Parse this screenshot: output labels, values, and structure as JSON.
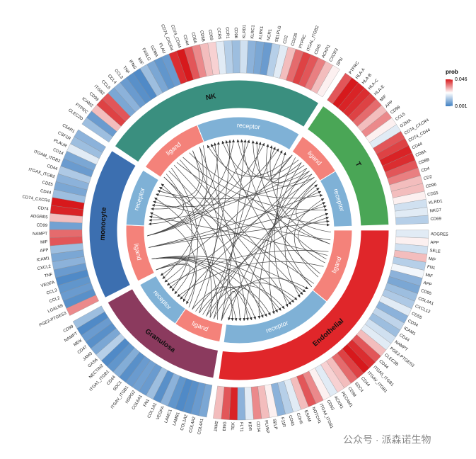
{
  "chart_data": {
    "type": "circos",
    "roles": [
      "ligand",
      "receptor"
    ],
    "legend": {
      "title": "prob",
      "clim": [
        0.001,
        0.046
      ],
      "cticks": [
        0.001,
        0.046
      ],
      "colors": [
        "#3f7fc1",
        "#ffffff",
        "#d7191c"
      ]
    },
    "watermark": "公众号 · 派森诺生物",
    "sectors": [
      {
        "name": "NK",
        "color": "#3a8f7f",
        "groups": [
          [
            {
              "gene": "CLEC2D",
              "prob": 0.012
            },
            {
              "gene": "PTPRC",
              "prob": 0.006
            },
            {
              "gene": "ICAM2",
              "prob": 0.03
            },
            {
              "gene": "CD99",
              "prob": 0.042
            },
            {
              "gene": "ITGB2",
              "prob": 0.04
            },
            {
              "gene": "CCL5",
              "prob": 0.008
            },
            {
              "gene": "CCL4",
              "prob": 0.01
            },
            {
              "gene": "CCL3",
              "prob": 0.006
            },
            {
              "gene": "TNF",
              "prob": 0.004
            },
            {
              "gene": "IFNG",
              "prob": 0.003
            },
            {
              "gene": "MIF",
              "prob": 0.012
            },
            {
              "gene": "FASLG",
              "prob": 0.008
            },
            {
              "gene": "GZMA",
              "prob": 0.005
            },
            {
              "gene": "PLAU",
              "prob": 0.006
            }
          ],
          [
            {
              "gene": "CD74_CXCR4",
              "prob": 0.044
            },
            {
              "gene": "CD74_CD44",
              "prob": 0.046
            },
            {
              "gene": "CD44",
              "prob": 0.04
            },
            {
              "gene": "CD8A",
              "prob": 0.035
            },
            {
              "gene": "CD8B",
              "prob": 0.03
            },
            {
              "gene": "CD69",
              "prob": 0.028
            },
            {
              "gene": "CCR5",
              "prob": 0.02
            },
            {
              "gene": "CCR1",
              "prob": 0.015
            },
            {
              "gene": "CD96",
              "prob": 0.012
            },
            {
              "gene": "KLRD1",
              "prob": 0.018
            },
            {
              "gene": "KLRC1",
              "prob": 0.01
            },
            {
              "gene": "KLRK1",
              "prob": 0.008
            },
            {
              "gene": "NCR1",
              "prob": 0.006
            },
            {
              "gene": "SELPLG",
              "prob": 0.015
            },
            {
              "gene": "CD2",
              "prob": 0.02
            },
            {
              "gene": "CD226",
              "prob": 0.03
            },
            {
              "gene": "PTPRC",
              "prob": 0.038
            },
            {
              "gene": "ITGAL_ITGB2",
              "prob": 0.042
            },
            {
              "gene": "CD45",
              "prob": 0.04
            },
            {
              "gene": "ACKR1",
              "prob": 0.036
            },
            {
              "gene": "CXCR3",
              "prob": 0.03
            },
            {
              "gene": "SPN",
              "prob": 0.025
            }
          ]
        ]
      },
      {
        "name": "T",
        "color": "#4aa656",
        "groups": [
          [
            {
              "gene": "PTPRC",
              "prob": 0.04
            },
            {
              "gene": "HLA-A",
              "prob": 0.046
            },
            {
              "gene": "HLA-B",
              "prob": 0.045
            },
            {
              "gene": "HLA-C",
              "prob": 0.044
            },
            {
              "gene": "HLA-E",
              "prob": 0.042
            },
            {
              "gene": "MIF",
              "prob": 0.038
            },
            {
              "gene": "APP",
              "prob": 0.03
            },
            {
              "gene": "CD99",
              "prob": 0.035
            },
            {
              "gene": "CCL5",
              "prob": 0.025
            },
            {
              "gene": "GZMA",
              "prob": 0.02
            }
          ],
          [
            {
              "gene": "CD74_CXCR4",
              "prob": 0.04
            },
            {
              "gene": "CD74_CD44",
              "prob": 0.042
            },
            {
              "gene": "CD44",
              "prob": 0.045
            },
            {
              "gene": "CD8A",
              "prob": 0.044
            },
            {
              "gene": "CD8B",
              "prob": 0.04
            },
            {
              "gene": "CD4",
              "prob": 0.036
            },
            {
              "gene": "CD2",
              "prob": 0.03
            },
            {
              "gene": "CD96",
              "prob": 0.03
            },
            {
              "gene": "CD55",
              "prob": 0.025
            },
            {
              "gene": "KLRD1",
              "prob": 0.018
            },
            {
              "gene": "NKG7",
              "prob": 0.02
            },
            {
              "gene": "CD69",
              "prob": 0.015
            }
          ]
        ]
      },
      {
        "name": "Endothelial",
        "color": "#e0262a",
        "groups": [
          [
            {
              "gene": "ADGRE5",
              "prob": 0.02
            },
            {
              "gene": "APP",
              "prob": 0.025
            },
            {
              "gene": "SELE",
              "prob": 0.018
            },
            {
              "gene": "MIF",
              "prob": 0.03
            },
            {
              "gene": "FN1",
              "prob": 0.015
            },
            {
              "gene": "MIF",
              "prob": 0.022
            },
            {
              "gene": "APP",
              "prob": 0.01
            },
            {
              "gene": "CD55",
              "prob": 0.008
            },
            {
              "gene": "COL4A1",
              "prob": 0.012
            },
            {
              "gene": "CXCL12",
              "prob": 0.014
            },
            {
              "gene": "CD55",
              "prob": 0.02
            },
            {
              "gene": "CD34",
              "prob": 0.01
            },
            {
              "gene": "ICAM1",
              "prob": 0.016
            },
            {
              "gene": "CD44",
              "prob": 0.012
            },
            {
              "gene": "NAMPT",
              "prob": 0.018
            },
            {
              "gene": "PGE2-PTGES3",
              "prob": 0.02
            }
          ],
          [
            {
              "gene": "CLEC2B",
              "prob": 0.03
            },
            {
              "gene": "CD44",
              "prob": 0.04
            },
            {
              "gene": "ITGA5_ITGB1",
              "prob": 0.044
            },
            {
              "gene": "ITGAV_ITGB1",
              "prob": 0.046
            },
            {
              "gene": "CD44",
              "prob": 0.042
            },
            {
              "gene": "SDC4",
              "prob": 0.038
            },
            {
              "gene": "CD99",
              "prob": 0.03
            },
            {
              "gene": "PECAM1",
              "prob": 0.028
            },
            {
              "gene": "ACKR1",
              "prob": 0.02
            },
            {
              "gene": "CD93",
              "prob": 0.025
            },
            {
              "gene": "ITGA4_ITGB1",
              "prob": 0.035
            },
            {
              "gene": "NOTCH1",
              "prob": 0.04
            },
            {
              "gene": "ESAM",
              "prob": 0.03
            },
            {
              "gene": "CDH5",
              "prob": 0.02
            },
            {
              "gene": "CD46",
              "prob": 0.015
            },
            {
              "gene": "F11R",
              "prob": 0.01
            },
            {
              "gene": "SELP",
              "prob": 0.025
            },
            {
              "gene": "PLVAP",
              "prob": 0.03
            },
            {
              "gene": "CD34",
              "prob": 0.035
            },
            {
              "gene": "KDR",
              "prob": 0.02
            },
            {
              "gene": "FLT1",
              "prob": 0.01
            },
            {
              "gene": "TEK",
              "prob": 0.045
            },
            {
              "gene": "ENG",
              "prob": 0.04
            },
            {
              "gene": "JAM2",
              "prob": 0.03
            }
          ]
        ]
      },
      {
        "name": "Granulosa",
        "color": "#8b3a5e",
        "groups": [
          [
            {
              "gene": "COL4A1",
              "prob": 0.008
            },
            {
              "gene": "COL4A2",
              "prob": 0.006
            },
            {
              "gene": "COL1A2",
              "prob": 0.004
            },
            {
              "gene": "LAMB1",
              "prob": 0.003
            },
            {
              "gene": "LAMC1",
              "prob": 0.005
            },
            {
              "gene": "VEGFA",
              "prob": 0.01
            },
            {
              "gene": "COL1A1",
              "prob": 0.004
            },
            {
              "gene": "FN1",
              "prob": 0.012
            },
            {
              "gene": "COL6A1",
              "prob": 0.006
            },
            {
              "gene": "HSPG2",
              "prob": 0.007
            }
          ],
          [
            {
              "gene": "ITGAV_ITGB1",
              "prob": 0.006
            },
            {
              "gene": "SDC1",
              "prob": 0.004
            },
            {
              "gene": "CD44",
              "prob": 0.009
            },
            {
              "gene": "ITGA1_ITGB1",
              "prob": 0.005
            },
            {
              "gene": "NECTIN2",
              "prob": 0.003
            },
            {
              "gene": "GAS6",
              "prob": 0.015
            },
            {
              "gene": "JAM3",
              "prob": 0.008
            },
            {
              "gene": "CD47",
              "prob": 0.004
            },
            {
              "gene": "MDK",
              "prob": 0.006
            },
            {
              "gene": "NAMPT",
              "prob": 0.003
            },
            {
              "gene": "CD99",
              "prob": 0.012
            }
          ]
        ]
      },
      {
        "name": "monocyte",
        "color": "#3c6fb0",
        "groups": [
          [
            {
              "gene": "PGE2-PTGES3",
              "prob": 0.035
            },
            {
              "gene": "LGALS9",
              "prob": 0.004
            },
            {
              "gene": "CCL2",
              "prob": 0.006
            },
            {
              "gene": "CCL3",
              "prob": 0.005
            },
            {
              "gene": "VEGFA",
              "prob": 0.003
            },
            {
              "gene": "TNF",
              "prob": 0.006
            },
            {
              "gene": "CXCL2",
              "prob": 0.01
            },
            {
              "gene": "ICAM1",
              "prob": 0.008
            },
            {
              "gene": "APP",
              "prob": 0.012
            },
            {
              "gene": "MIF",
              "prob": 0.04
            },
            {
              "gene": "NAMPT",
              "prob": 0.038
            },
            {
              "gene": "CD99",
              "prob": 0.007
            }
          ],
          [
            {
              "gene": "ADGRE5",
              "prob": 0.03
            },
            {
              "gene": "CD74",
              "prob": 0.045
            },
            {
              "gene": "CD74_CXCR4",
              "prob": 0.046
            },
            {
              "gene": "CD44",
              "prob": 0.012
            },
            {
              "gene": "CD55",
              "prob": 0.008
            },
            {
              "gene": "ITGAX_ITGB2",
              "prob": 0.01
            },
            {
              "gene": "CD44",
              "prob": 0.014
            },
            {
              "gene": "ITGAM_ITGB2",
              "prob": 0.006
            },
            {
              "gene": "CD14",
              "prob": 0.008
            },
            {
              "gene": "PLAUR",
              "prob": 0.02
            },
            {
              "gene": "CSF1R",
              "prob": 0.012
            },
            {
              "gene": "C5AR1",
              "prob": 0.01
            }
          ]
        ]
      }
    ]
  }
}
